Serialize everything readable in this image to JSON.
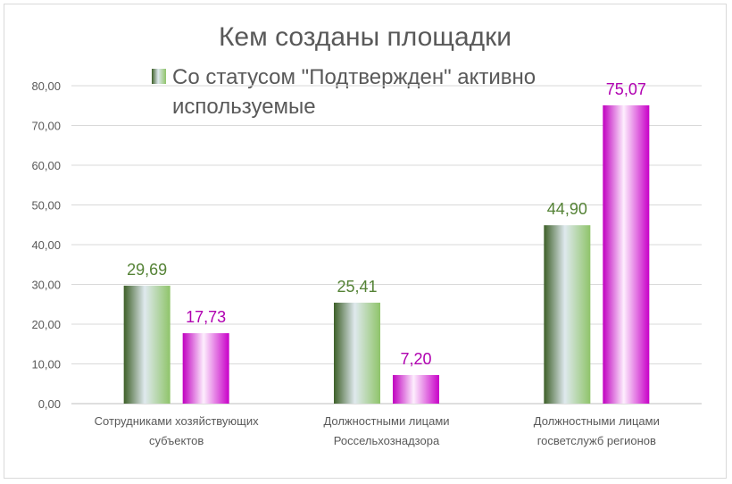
{
  "chart_data": {
    "type": "bar",
    "title": "Кем созданы площадки",
    "categories": [
      [
        "Сотрудниками хозяйствующих",
        "субъектов"
      ],
      [
        "Должностными лицами",
        "Россельхознадзора"
      ],
      [
        "Должностными лицами",
        "госветслужб регионов"
      ]
    ],
    "series": [
      {
        "name": "",
        "values": [
          29.69,
          25.41,
          44.9
        ],
        "labels": [
          "29,69",
          "25,41",
          "44,90"
        ],
        "color": "#548235",
        "label_color": "#548235"
      },
      {
        "name": "Со статусом \"Подтвержден\" активно используемые",
        "values": [
          17.73,
          7.2,
          75.07
        ],
        "labels": [
          "17,73",
          "7,20",
          "75,07"
        ],
        "color": "#cc00cc",
        "label_color": "#b000b0"
      }
    ],
    "legend_lines": [
      "Со статусом \"Подтвержден\" активно",
      "используемые"
    ],
    "yticks": [
      "0,00",
      "10,00",
      "20,00",
      "30,00",
      "40,00",
      "50,00",
      "60,00",
      "70,00",
      "80,00"
    ],
    "ylim": [
      0,
      80
    ],
    "grid": true,
    "legend_position": "top"
  }
}
